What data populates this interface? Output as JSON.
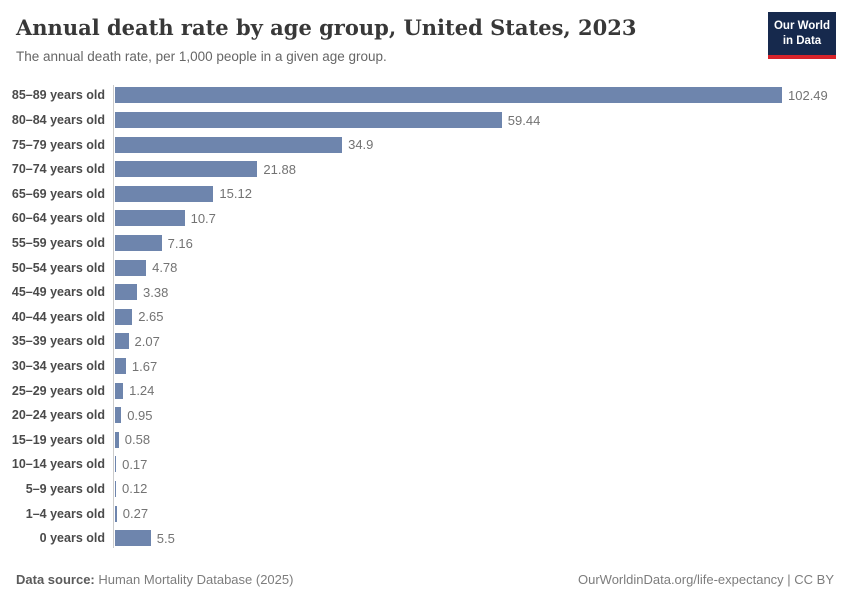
{
  "header": {
    "title": "Annual death rate by age group, United States, 2023",
    "subtitle": "The annual death rate, per 1,000 people in a given age group.",
    "logo": {
      "line1": "Our World",
      "line2": "in Data",
      "bg_color": "#16294d",
      "accent_color": "#d8232a"
    }
  },
  "chart_data": {
    "type": "bar",
    "orientation": "horizontal",
    "title": "Annual death rate by age group, United States, 2023",
    "xlabel": "",
    "ylabel": "",
    "unit": "deaths per 1,000 people",
    "xlim": [
      0,
      102.49
    ],
    "grid": false,
    "legend": "none",
    "bar_color": "#6e85ad",
    "categories": [
      "85–89 years old",
      "80–84 years old",
      "75–79 years old",
      "70–74 years old",
      "65–69 years old",
      "60–64 years old",
      "55–59 years old",
      "50–54 years old",
      "45–49 years old",
      "40–44 years old",
      "35–39 years old",
      "30–34 years old",
      "25–29 years old",
      "20–24 years old",
      "15–19 years old",
      "10–14 years old",
      "5–9 years old",
      "1–4 years old",
      "0 years old"
    ],
    "values": [
      102.49,
      59.44,
      34.9,
      21.88,
      15.12,
      10.7,
      7.16,
      4.78,
      3.38,
      2.65,
      2.07,
      1.67,
      1.24,
      0.95,
      0.58,
      0.17,
      0.12,
      0.27,
      5.5
    ],
    "value_labels": [
      "102.49",
      "59.44",
      "34.9",
      "21.88",
      "15.12",
      "10.7",
      "7.16",
      "4.78",
      "3.38",
      "2.65",
      "2.07",
      "1.67",
      "1.24",
      "0.95",
      "0.58",
      "0.17",
      "0.12",
      "0.27",
      "5.5"
    ]
  },
  "footer": {
    "source_label": "Data source:",
    "source_text": " Human Mortality Database (2025)",
    "credit": "OurWorldinData.org/life-expectancy | CC BY"
  }
}
